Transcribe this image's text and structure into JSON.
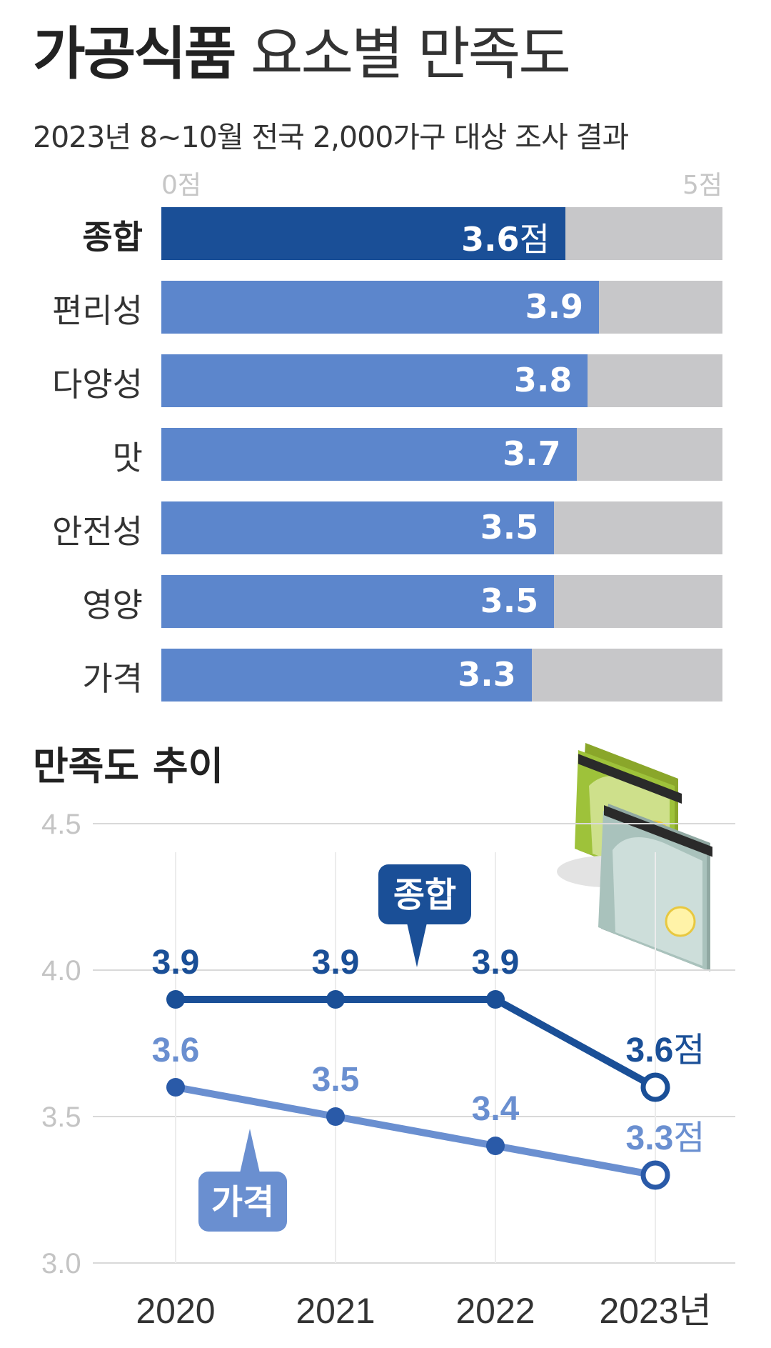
{
  "title_bold": "가공식품",
  "title_light": "요소별 만족도",
  "subtitle": "2023년 8~10월 전국 2,000가구 대상 조사 결과",
  "trend_title": "만족도 추이",
  "colors": {
    "overall_bar": "#1a4f97",
    "element_bar": "#5c86cc",
    "track": "#c7c7c9",
    "overall_line": "#1a4f97",
    "price_line": "#6a8fd0",
    "grid": "#d9d9d9",
    "axis_text": "#c4c4c4"
  },
  "chart_data": [
    {
      "type": "bar",
      "orientation": "horizontal",
      "axis_min_label": "0점",
      "axis_max_label": "5점",
      "xlim": [
        0,
        5
      ],
      "categories": [
        "종합",
        "편리성",
        "다양성",
        "맛",
        "안전성",
        "영양",
        "가격"
      ],
      "values": [
        3.6,
        3.9,
        3.8,
        3.7,
        3.5,
        3.5,
        3.3
      ],
      "value_labels": [
        "3.6",
        "3.9",
        "3.8",
        "3.7",
        "3.5",
        "3.5",
        "3.3"
      ],
      "first_value_unit": "점"
    },
    {
      "type": "line",
      "x": [
        "2020",
        "2021",
        "2022",
        "2023"
      ],
      "x_last_suffix": "년",
      "y_ticks": [
        "4.5",
        "4.0",
        "3.5",
        "3.0"
      ],
      "ylim": [
        3.0,
        4.5
      ],
      "grid": true,
      "last_unit": "점",
      "series": [
        {
          "name": "종합",
          "values": [
            3.9,
            3.9,
            3.9,
            3.6
          ],
          "labels": [
            "3.9",
            "3.9",
            "3.9",
            "3.6"
          ]
        },
        {
          "name": "가격",
          "values": [
            3.6,
            3.5,
            3.4,
            3.3
          ],
          "labels": [
            "3.6",
            "3.5",
            "3.4",
            "3.3"
          ]
        }
      ]
    }
  ]
}
